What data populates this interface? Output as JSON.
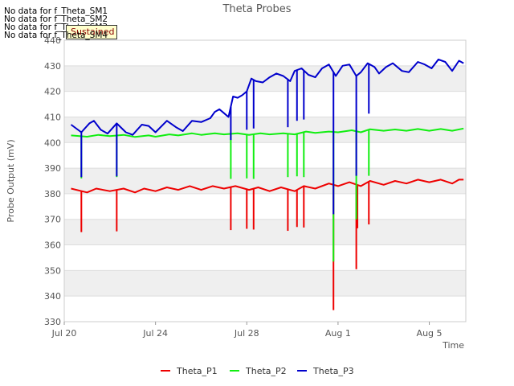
{
  "notices": [
    "No data for f_Theta_SM1",
    "No data for f_Theta_SM2",
    "No data for f_Theta_SM3",
    "No data for f_Theta_SM4"
  ],
  "badge_label": "Sustained",
  "colors": {
    "plot_bg": "#ffffff",
    "band": "#efefef",
    "grid": "#dddddd",
    "axis_text": "#555555",
    "theta_p1": "#ee0000",
    "theta_p2": "#11ee11",
    "theta_p3": "#0000cc"
  },
  "chart_data": {
    "type": "line",
    "title": "Theta Probes",
    "xlabel": "Time",
    "ylabel": "Probe Output (mV)",
    "xlim": [
      0,
      17.6
    ],
    "ylim": [
      330,
      440
    ],
    "yticks": [
      330,
      340,
      350,
      360,
      370,
      380,
      390,
      400,
      410,
      420,
      430,
      440
    ],
    "xticks": [
      {
        "value": 0,
        "label": "Jul 20"
      },
      {
        "value": 4,
        "label": "Jul 24"
      },
      {
        "value": 8,
        "label": "Jul 28"
      },
      {
        "value": 12,
        "label": "Aug 1"
      },
      {
        "value": 16,
        "label": "Aug 5"
      }
    ],
    "legend": [
      "Theta_P1",
      "Theta_P2",
      "Theta_P3"
    ],
    "legend_position": "bottom",
    "series": [
      {
        "name": "Theta_P1",
        "color_key": "theta_p1",
        "base": [
          [
            0.3,
            382
          ],
          [
            1.0,
            380.5
          ],
          [
            1.4,
            382
          ],
          [
            2.0,
            381
          ],
          [
            2.6,
            382
          ],
          [
            3.1,
            380.5
          ],
          [
            3.5,
            382
          ],
          [
            4.0,
            381
          ],
          [
            4.5,
            382.5
          ],
          [
            5.0,
            381.5
          ],
          [
            5.5,
            383
          ],
          [
            6.0,
            381.5
          ],
          [
            6.5,
            383
          ],
          [
            7.0,
            382
          ],
          [
            7.5,
            383
          ],
          [
            8.1,
            381.5
          ],
          [
            8.5,
            382.5
          ],
          [
            9.0,
            381
          ],
          [
            9.5,
            382.5
          ],
          [
            10.1,
            381
          ],
          [
            10.5,
            383
          ],
          [
            11.0,
            382
          ],
          [
            11.6,
            384
          ],
          [
            12.0,
            383
          ],
          [
            12.5,
            384.5
          ],
          [
            13.0,
            383
          ],
          [
            13.4,
            385
          ],
          [
            14.0,
            383.5
          ],
          [
            14.5,
            385
          ],
          [
            15.0,
            384
          ],
          [
            15.5,
            385.5
          ],
          [
            16.0,
            384.5
          ],
          [
            16.5,
            385.5
          ],
          [
            17.0,
            384
          ],
          [
            17.3,
            385.5
          ],
          [
            17.5,
            385.5
          ]
        ],
        "spikes": [
          [
            0.75,
            365
          ],
          [
            2.3,
            365.3
          ],
          [
            7.3,
            365.8
          ],
          [
            8.0,
            366.3
          ],
          [
            8.3,
            366
          ],
          [
            9.8,
            365.5
          ],
          [
            10.2,
            367
          ],
          [
            10.5,
            366.8
          ],
          [
            11.8,
            334.5
          ],
          [
            12.8,
            350.5
          ],
          [
            12.85,
            366.5
          ],
          [
            13.35,
            368
          ]
        ]
      },
      {
        "name": "Theta_P2",
        "color_key": "theta_p2",
        "base": [
          [
            0.3,
            402.8
          ],
          [
            1.0,
            402.3
          ],
          [
            1.5,
            403
          ],
          [
            2.0,
            402.5
          ],
          [
            2.6,
            403
          ],
          [
            3.1,
            402.2
          ],
          [
            3.7,
            402.8
          ],
          [
            4.0,
            402.3
          ],
          [
            4.6,
            403.2
          ],
          [
            5.0,
            402.8
          ],
          [
            5.6,
            403.6
          ],
          [
            6.0,
            403
          ],
          [
            6.6,
            403.6
          ],
          [
            7.0,
            403.2
          ],
          [
            7.6,
            403.6
          ],
          [
            8.1,
            403
          ],
          [
            8.6,
            403.6
          ],
          [
            9.0,
            403.2
          ],
          [
            9.6,
            403.6
          ],
          [
            10.1,
            403.2
          ],
          [
            10.6,
            404.3
          ],
          [
            11.0,
            403.8
          ],
          [
            11.6,
            404.3
          ],
          [
            12.0,
            404
          ],
          [
            12.6,
            404.8
          ],
          [
            13.0,
            404
          ],
          [
            13.4,
            405.2
          ],
          [
            14.0,
            404.6
          ],
          [
            14.5,
            405.1
          ],
          [
            15.0,
            404.6
          ],
          [
            15.5,
            405.3
          ],
          [
            16.0,
            404.6
          ],
          [
            16.5,
            405.3
          ],
          [
            17.0,
            404.6
          ],
          [
            17.5,
            405.5
          ]
        ],
        "spikes": [
          [
            0.75,
            386
          ],
          [
            2.3,
            386.5
          ],
          [
            7.3,
            385.8
          ],
          [
            8.0,
            386
          ],
          [
            8.3,
            385.8
          ],
          [
            9.8,
            386.5
          ],
          [
            10.2,
            386.8
          ],
          [
            10.5,
            386.5
          ],
          [
            11.8,
            353.5
          ],
          [
            12.8,
            370
          ],
          [
            13.35,
            387
          ]
        ]
      },
      {
        "name": "Theta_P3",
        "color_key": "theta_p3",
        "base": [
          [
            0.3,
            407
          ],
          [
            0.75,
            404
          ],
          [
            1.1,
            407.5
          ],
          [
            1.3,
            408.5
          ],
          [
            1.6,
            405
          ],
          [
            1.9,
            403.5
          ],
          [
            2.3,
            407.5
          ],
          [
            2.7,
            404
          ],
          [
            3.0,
            403
          ],
          [
            3.4,
            407
          ],
          [
            3.7,
            406.5
          ],
          [
            4.0,
            404
          ],
          [
            4.5,
            408.5
          ],
          [
            4.9,
            406
          ],
          [
            5.2,
            404.5
          ],
          [
            5.6,
            408.5
          ],
          [
            6.0,
            408
          ],
          [
            6.4,
            409.5
          ],
          [
            6.6,
            412
          ],
          [
            6.8,
            413
          ],
          [
            7.0,
            411.5
          ],
          [
            7.2,
            410
          ],
          [
            7.4,
            418
          ],
          [
            7.6,
            417.5
          ],
          [
            7.8,
            418.5
          ],
          [
            8.0,
            420
          ],
          [
            8.2,
            425
          ],
          [
            8.4,
            424
          ],
          [
            8.7,
            423.5
          ],
          [
            9.0,
            425.5
          ],
          [
            9.3,
            427
          ],
          [
            9.6,
            426
          ],
          [
            9.9,
            424
          ],
          [
            10.1,
            428
          ],
          [
            10.4,
            429
          ],
          [
            10.7,
            426.5
          ],
          [
            11.0,
            425.5
          ],
          [
            11.3,
            429
          ],
          [
            11.6,
            430.5
          ],
          [
            11.9,
            426
          ],
          [
            12.2,
            430
          ],
          [
            12.5,
            430.5
          ],
          [
            12.8,
            426
          ],
          [
            13.0,
            427.5
          ],
          [
            13.3,
            431
          ],
          [
            13.6,
            429.5
          ],
          [
            13.8,
            427
          ],
          [
            14.1,
            429.5
          ],
          [
            14.4,
            431
          ],
          [
            14.8,
            428
          ],
          [
            15.1,
            427.5
          ],
          [
            15.5,
            431.5
          ],
          [
            15.8,
            430.5
          ],
          [
            16.1,
            429
          ],
          [
            16.4,
            432.5
          ],
          [
            16.7,
            431.5
          ],
          [
            17.0,
            428
          ],
          [
            17.3,
            432
          ],
          [
            17.5,
            431
          ]
        ],
        "spikes": [
          [
            0.75,
            386.5
          ],
          [
            2.3,
            386.8
          ],
          [
            7.3,
            401
          ],
          [
            8.0,
            405
          ],
          [
            8.3,
            405.5
          ],
          [
            9.8,
            406
          ],
          [
            10.2,
            408.5
          ],
          [
            10.5,
            409
          ],
          [
            11.8,
            372
          ],
          [
            12.8,
            387
          ],
          [
            13.35,
            411.3
          ]
        ]
      }
    ]
  }
}
